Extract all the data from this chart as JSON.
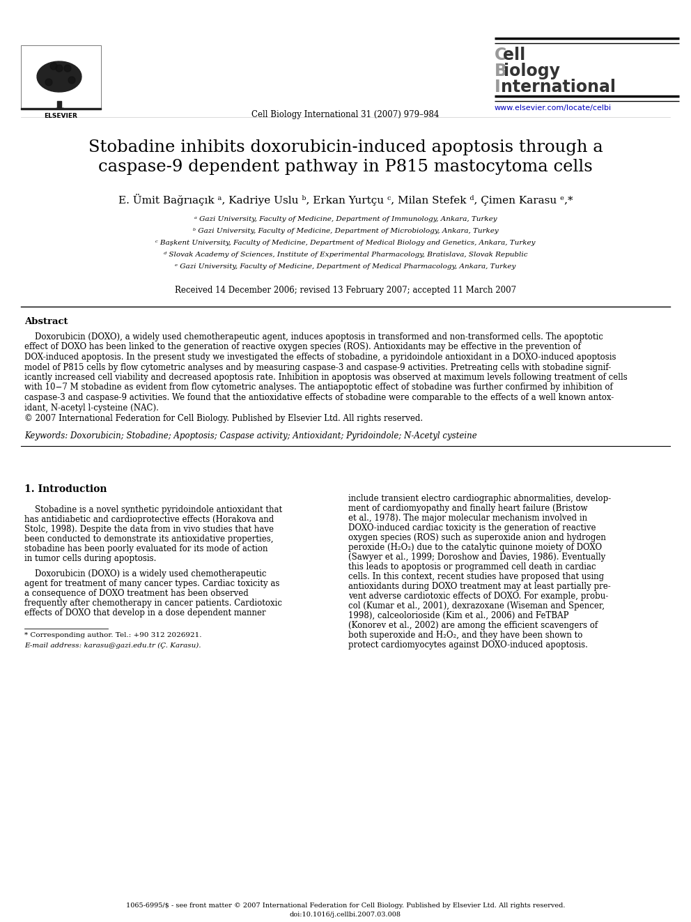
{
  "title_line1": "Stobadine inhibits doxorubicin-induced apoptosis through a",
  "title_line2": "caspase-9 dependent pathway in P815 mastocytoma cells",
  "authors": "E. Ümit Bağrıaçık ᵃ, Kadriye Uslu ᵇ, Erkan Yurtçu ᶜ, Milan Stefek ᵈ, Çimen Karasu ᵉ,*",
  "affil_a": "ᵃ Gazi University, Faculty of Medicine, Department of Immunology, Ankara, Turkey",
  "affil_b": "ᵇ Gazi University, Faculty of Medicine, Department of Microbiology, Ankara, Turkey",
  "affil_c": "ᶜ Başkent University, Faculty of Medicine, Department of Medical Biology and Genetics, Ankara, Turkey",
  "affil_d": "ᵈ Slovak Academy of Sciences, Institute of Experimental Pharmacology, Bratislava, Slovak Republic",
  "affil_e": "ᵉ Gazi University, Faculty of Medicine, Department of Medical Pharmacology, Ankara, Turkey",
  "received": "Received 14 December 2006; revised 13 February 2007; accepted 11 March 2007",
  "journal_line": "Cell Biology International 31 (2007) 979–984",
  "url": "www.elsevier.com/locate/celbi",
  "journal_name_line1": "Cell",
  "journal_name_line2": "Biology",
  "journal_name_line3": "International",
  "abstract_title": "Abstract",
  "abstract_para": "    Doxorubicin (DOXO), a widely used chemotherapeutic agent, induces apoptosis in transformed and non-transformed cells. The apoptotic\neffect of DOXO has been linked to the generation of reactive oxygen species (ROS). Antioxidants may be effective in the prevention of\nDOX-induced apoptosis. In the present study we investigated the effects of stobadine, a pyridoindole antioxidant in a DOXO-induced apoptosis\nmodel of P815 cells by flow cytometric analyses and by measuring caspase-3 and caspase-9 activities. Pretreating cells with stobadine signif-\nicantly increased cell viability and decreased apoptosis rate. Inhibition in apoptosis was observed at maximum levels following treatment of cells\nwith 10−7 M stobadine as evident from flow cytometric analyses. The antiapoptotic effect of stobadine was further confirmed by inhibition of\ncaspase-3 and caspase-9 activities. We found that the antioxidative effects of stobadine were comparable to the effects of a well known antox-\nidant, N-acetyl l-cysteine (NAC).",
  "abstract_copy": "© 2007 International Federation for Cell Biology. Published by Elsevier Ltd. All rights reserved.",
  "keywords": "Keywords: Doxorubicin; Stobadine; Apoptosis; Caspase activity; Antioxidant; Pyridoindole; N-Acetyl cysteine",
  "section1_title": "1. Introduction",
  "col1_lines": [
    {
      "text": "    Stobadine is a novel synthetic pyridoindole antioxidant that",
      "color": "#000000"
    },
    {
      "text": "has antidiabetic and cardioprotective effects (Horakova and",
      "color": "#000000"
    },
    {
      "text": "Stolc, 1998). Despite the data from in vivo studies that have",
      "color": "#000000"
    },
    {
      "text": "been conducted to demonstrate its antioxidative properties,",
      "color": "#000000"
    },
    {
      "text": "stobadine has been poorly evaluated for its mode of action",
      "color": "#000000"
    },
    {
      "text": "in tumor cells during apoptosis.",
      "color": "#000000"
    },
    {
      "text": "",
      "color": "#000000"
    },
    {
      "text": "    Doxorubicin (DOXO) is a widely used chemotherapeutic",
      "color": "#000000"
    },
    {
      "text": "agent for treatment of many cancer types. Cardiac toxicity as",
      "color": "#000000"
    },
    {
      "text": "a consequence of DOXO treatment has been observed",
      "color": "#000000"
    },
    {
      "text": "frequently after chemotherapy in cancer patients. Cardiotoxic",
      "color": "#000000"
    },
    {
      "text": "effects of DOXO that develop in a dose dependent manner",
      "color": "#000000"
    }
  ],
  "col2_lines": [
    {
      "text": "include transient electro cardiographic abnormalities, develop-",
      "color": "#000000"
    },
    {
      "text": "ment of cardiomyopathy and finally heart failure (Bristow",
      "color": "#000000"
    },
    {
      "text": "et al., 1978). The major molecular mechanism involved in",
      "color": "#000000"
    },
    {
      "text": "DOXO-induced cardiac toxicity is the generation of reactive",
      "color": "#000000"
    },
    {
      "text": "oxygen species (ROS) such as superoxide anion and hydrogen",
      "color": "#000000"
    },
    {
      "text": "peroxide (H₂O₂) due to the catalytic quinone moiety of DOXO",
      "color": "#000000"
    },
    {
      "text": "(Sawyer et al., 1999; Doroshow and Davies, 1986). Eventually",
      "color": "#000000"
    },
    {
      "text": "this leads to apoptosis or programmed cell death in cardiac",
      "color": "#000000"
    },
    {
      "text": "cells. In this context, recent studies have proposed that using",
      "color": "#000000"
    },
    {
      "text": "antioxidants during DOXO treatment may at least partially pre-",
      "color": "#000000"
    },
    {
      "text": "vent adverse cardiotoxic effects of DOXO. For example, probu-",
      "color": "#000000"
    },
    {
      "text": "col (Kumar et al., 2001), dexrazoxane (Wiseman and Spencer,",
      "color": "#000000"
    },
    {
      "text": "1998), calceolorioside (Kim et al., 2006) and FeTBAP",
      "color": "#000000"
    },
    {
      "text": "(Konorev et al., 2002) are among the efficient scavengers of",
      "color": "#000000"
    },
    {
      "text": "both superoxide and H₂O₂, and they have been shown to",
      "color": "#000000"
    },
    {
      "text": "protect cardiomyocytes against DOXO-induced apoptosis.",
      "color": "#000000"
    }
  ],
  "footnote_corresponding": "* Corresponding author. Tel.: +90 312 2026921.",
  "footnote_email": "E-mail address: karasu@gazi.edu.tr (Ç. Karasu).",
  "footer_line1": "1065-6995/$ - see front matter © 2007 International Federation for Cell Biology. Published by Elsevier Ltd. All rights reserved.",
  "footer_line2": "doi:10.1016/j.cellbi.2007.03.008",
  "bg_color": "#ffffff",
  "text_color": "#000000",
  "link_color": "#0000bb",
  "journal_c_color": "#999999",
  "journal_bold_color": "#333333"
}
